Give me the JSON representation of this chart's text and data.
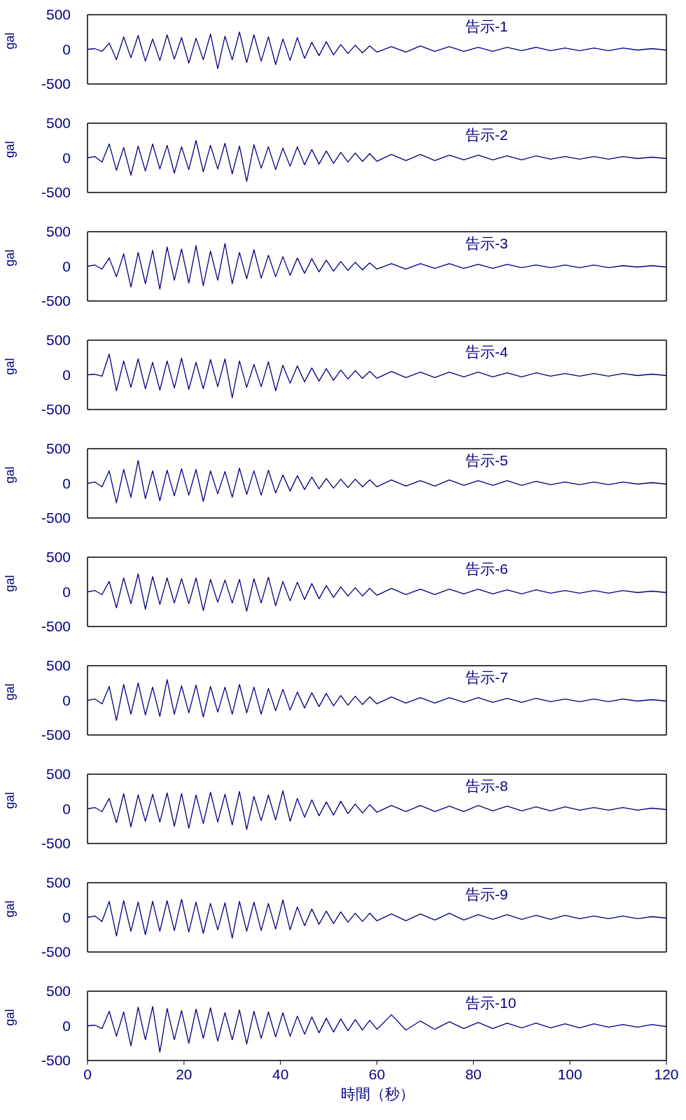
{
  "chart_data": [
    {
      "type": "line",
      "ylabel": "gal",
      "annotations": [
        "告示-1"
      ],
      "xlim": [
        0,
        120
      ],
      "xticks": [
        0,
        20,
        40,
        60,
        80,
        100,
        120
      ],
      "ylim": [
        -500,
        500
      ],
      "yticks": [
        -500,
        0,
        500
      ],
      "tick_labels": "y",
      "marker": "none",
      "x": [
        0,
        1.5,
        3,
        4.5,
        6,
        7.5,
        9,
        10.5,
        12,
        13.5,
        15,
        16.5,
        18,
        19.5,
        21,
        22.5,
        24,
        25.5,
        27,
        28.5,
        30,
        31.5,
        33,
        34.5,
        36,
        37.5,
        39,
        40.5,
        42,
        43.5,
        45,
        46.5,
        48,
        49.5,
        51,
        52.5,
        54,
        55.5,
        57,
        58.5,
        60,
        63,
        66,
        69,
        72,
        75,
        78,
        81,
        84,
        87,
        90,
        93,
        96,
        99,
        102,
        105,
        108,
        111,
        114,
        117,
        120
      ],
      "series": [
        {
          "color": "#000080",
          "values": [
            0,
            10,
            -30,
            90,
            -150,
            180,
            -120,
            200,
            -170,
            150,
            -160,
            210,
            -140,
            170,
            -200,
            160,
            -150,
            220,
            -280,
            190,
            -150,
            250,
            -190,
            210,
            -170,
            180,
            -220,
            150,
            -160,
            170,
            -130,
            100,
            -90,
            110,
            -80,
            70,
            -60,
            60,
            -50,
            50,
            -40,
            40,
            -40,
            50,
            -30,
            40,
            -30,
            30,
            -30,
            30,
            -20,
            30,
            -20,
            20,
            -20,
            20,
            -20,
            20,
            -10,
            10,
            -10
          ]
        }
      ]
    },
    {
      "type": "line",
      "ylabel": "gal",
      "annotations": [
        "告示-2"
      ],
      "xlim": [
        0,
        120
      ],
      "xticks": [
        0,
        20,
        40,
        60,
        80,
        100,
        120
      ],
      "ylim": [
        -500,
        500
      ],
      "yticks": [
        -500,
        0,
        500
      ],
      "tick_labels": "y",
      "marker": "none",
      "x": [
        0,
        1.5,
        3,
        4.5,
        6,
        7.5,
        9,
        10.5,
        12,
        13.5,
        15,
        16.5,
        18,
        19.5,
        21,
        22.5,
        24,
        25.5,
        27,
        28.5,
        30,
        31.5,
        33,
        34.5,
        36,
        37.5,
        39,
        40.5,
        42,
        43.5,
        45,
        46.5,
        48,
        49.5,
        51,
        52.5,
        54,
        55.5,
        57,
        58.5,
        60,
        63,
        66,
        69,
        72,
        75,
        78,
        81,
        84,
        87,
        90,
        93,
        96,
        99,
        102,
        105,
        108,
        111,
        114,
        117,
        120
      ],
      "series": [
        {
          "color": "#000080",
          "values": [
            0,
            20,
            -60,
            200,
            -180,
            150,
            -250,
            170,
            -190,
            200,
            -160,
            180,
            -220,
            160,
            -170,
            250,
            -200,
            180,
            -160,
            210,
            -230,
            170,
            -340,
            190,
            -150,
            160,
            -170,
            140,
            -120,
            160,
            -100,
            120,
            -90,
            100,
            -80,
            80,
            -60,
            70,
            -50,
            60,
            -50,
            50,
            -40,
            50,
            -40,
            40,
            -30,
            40,
            -30,
            30,
            -30,
            30,
            -20,
            20,
            -20,
            20,
            -20,
            20,
            -10,
            10,
            -10
          ]
        }
      ]
    },
    {
      "type": "line",
      "ylabel": "gal",
      "annotations": [
        "告示-3"
      ],
      "xlim": [
        0,
        120
      ],
      "xticks": [
        0,
        20,
        40,
        60,
        80,
        100,
        120
      ],
      "ylim": [
        -500,
        500
      ],
      "yticks": [
        -500,
        0,
        500
      ],
      "tick_labels": "y",
      "marker": "none",
      "x": [
        0,
        1.5,
        3,
        4.5,
        6,
        7.5,
        9,
        10.5,
        12,
        13.5,
        15,
        16.5,
        18,
        19.5,
        21,
        22.5,
        24,
        25.5,
        27,
        28.5,
        30,
        31.5,
        33,
        34.5,
        36,
        37.5,
        39,
        40.5,
        42,
        43.5,
        45,
        46.5,
        48,
        49.5,
        51,
        52.5,
        54,
        55.5,
        57,
        58.5,
        60,
        63,
        66,
        69,
        72,
        75,
        78,
        81,
        84,
        87,
        90,
        93,
        96,
        99,
        102,
        105,
        108,
        111,
        114,
        117,
        120
      ],
      "series": [
        {
          "color": "#000080",
          "values": [
            0,
            20,
            -40,
            120,
            -150,
            180,
            -300,
            200,
            -250,
            230,
            -330,
            280,
            -200,
            250,
            -240,
            300,
            -280,
            220,
            -200,
            330,
            -250,
            200,
            -180,
            240,
            -170,
            160,
            -150,
            140,
            -130,
            120,
            -100,
            110,
            -80,
            90,
            -70,
            70,
            -60,
            60,
            -50,
            50,
            -40,
            40,
            -40,
            40,
            -30,
            40,
            -30,
            30,
            -30,
            30,
            -20,
            20,
            -20,
            20,
            -20,
            20,
            -20,
            10,
            -10,
            10,
            -10
          ]
        }
      ]
    },
    {
      "type": "line",
      "ylabel": "gal",
      "annotations": [
        "告示-4"
      ],
      "xlim": [
        0,
        120
      ],
      "xticks": [
        0,
        20,
        40,
        60,
        80,
        100,
        120
      ],
      "ylim": [
        -500,
        500
      ],
      "yticks": [
        -500,
        0,
        500
      ],
      "tick_labels": "y",
      "marker": "none",
      "x": [
        0,
        1.5,
        3,
        4.5,
        6,
        7.5,
        9,
        10.5,
        12,
        13.5,
        15,
        16.5,
        18,
        19.5,
        21,
        22.5,
        24,
        25.5,
        27,
        28.5,
        30,
        31.5,
        33,
        34.5,
        36,
        37.5,
        39,
        40.5,
        42,
        43.5,
        45,
        46.5,
        48,
        49.5,
        51,
        52.5,
        54,
        55.5,
        57,
        58.5,
        60,
        63,
        66,
        69,
        72,
        75,
        78,
        81,
        84,
        87,
        90,
        93,
        96,
        99,
        102,
        105,
        108,
        111,
        114,
        117,
        120
      ],
      "series": [
        {
          "color": "#000080",
          "values": [
            0,
            10,
            -20,
            300,
            -230,
            200,
            -180,
            230,
            -200,
            180,
            -220,
            200,
            -190,
            240,
            -210,
            180,
            -200,
            220,
            -170,
            230,
            -330,
            200,
            -180,
            150,
            -170,
            190,
            -230,
            140,
            -120,
            130,
            -100,
            100,
            -90,
            90,
            -80,
            70,
            -60,
            60,
            -50,
            50,
            -50,
            50,
            -40,
            40,
            -40,
            40,
            -30,
            40,
            -30,
            30,
            -30,
            30,
            -20,
            20,
            -20,
            20,
            -20,
            20,
            -10,
            10,
            -10
          ]
        }
      ]
    },
    {
      "type": "line",
      "ylabel": "gal",
      "annotations": [
        "告示-5"
      ],
      "xlim": [
        0,
        120
      ],
      "xticks": [
        0,
        20,
        40,
        60,
        80,
        100,
        120
      ],
      "ylim": [
        -500,
        500
      ],
      "yticks": [
        -500,
        0,
        500
      ],
      "tick_labels": "y",
      "marker": "none",
      "x": [
        0,
        1.5,
        3,
        4.5,
        6,
        7.5,
        9,
        10.5,
        12,
        13.5,
        15,
        16.5,
        18,
        19.5,
        21,
        22.5,
        24,
        25.5,
        27,
        28.5,
        30,
        31.5,
        33,
        34.5,
        36,
        37.5,
        39,
        40.5,
        42,
        43.5,
        45,
        46.5,
        48,
        49.5,
        51,
        52.5,
        54,
        55.5,
        57,
        58.5,
        60,
        63,
        66,
        69,
        72,
        75,
        78,
        81,
        84,
        87,
        90,
        93,
        96,
        99,
        102,
        105,
        108,
        111,
        114,
        117,
        120
      ],
      "series": [
        {
          "color": "#000080",
          "values": [
            0,
            20,
            -50,
            180,
            -280,
            200,
            -200,
            330,
            -220,
            180,
            -250,
            190,
            -180,
            210,
            -170,
            200,
            -260,
            180,
            -150,
            170,
            -200,
            220,
            -160,
            180,
            -170,
            190,
            -140,
            120,
            -110,
            110,
            -90,
            90,
            -80,
            70,
            -70,
            60,
            -60,
            60,
            -50,
            50,
            -50,
            50,
            -40,
            40,
            -40,
            50,
            -30,
            40,
            -30,
            40,
            -30,
            30,
            -20,
            20,
            -20,
            20,
            -20,
            20,
            -10,
            10,
            -10
          ]
        }
      ]
    },
    {
      "type": "line",
      "ylabel": "gal",
      "annotations": [
        "告示-6"
      ],
      "xlim": [
        0,
        120
      ],
      "xticks": [
        0,
        20,
        40,
        60,
        80,
        100,
        120
      ],
      "ylim": [
        -500,
        500
      ],
      "yticks": [
        -500,
        0,
        500
      ],
      "tick_labels": "y",
      "marker": "none",
      "x": [
        0,
        1.5,
        3,
        4.5,
        6,
        7.5,
        9,
        10.5,
        12,
        13.5,
        15,
        16.5,
        18,
        19.5,
        21,
        22.5,
        24,
        25.5,
        27,
        28.5,
        30,
        31.5,
        33,
        34.5,
        36,
        37.5,
        39,
        40.5,
        42,
        43.5,
        45,
        46.5,
        48,
        49.5,
        51,
        52.5,
        54,
        55.5,
        57,
        58.5,
        60,
        63,
        66,
        69,
        72,
        75,
        78,
        81,
        84,
        87,
        90,
        93,
        96,
        99,
        102,
        105,
        108,
        111,
        114,
        117,
        120
      ],
      "series": [
        {
          "color": "#000080",
          "values": [
            0,
            20,
            -40,
            150,
            -230,
            200,
            -170,
            260,
            -250,
            220,
            -180,
            200,
            -160,
            190,
            -170,
            200,
            -270,
            180,
            -150,
            170,
            -160,
            180,
            -280,
            190,
            -160,
            210,
            -200,
            150,
            -130,
            140,
            -110,
            120,
            -100,
            90,
            -80,
            70,
            -60,
            60,
            -60,
            50,
            -50,
            50,
            -40,
            40,
            -40,
            40,
            -30,
            40,
            -30,
            30,
            -30,
            30,
            -20,
            20,
            -20,
            20,
            -20,
            20,
            -10,
            10,
            -10
          ]
        }
      ]
    },
    {
      "type": "line",
      "ylabel": "gal",
      "annotations": [
        "告示-7"
      ],
      "xlim": [
        0,
        120
      ],
      "xticks": [
        0,
        20,
        40,
        60,
        80,
        100,
        120
      ],
      "ylim": [
        -500,
        500
      ],
      "yticks": [
        -500,
        0,
        500
      ],
      "tick_labels": "y",
      "marker": "none",
      "x": [
        0,
        1.5,
        3,
        4.5,
        6,
        7.5,
        9,
        10.5,
        12,
        13.5,
        15,
        16.5,
        18,
        19.5,
        21,
        22.5,
        24,
        25.5,
        27,
        28.5,
        30,
        31.5,
        33,
        34.5,
        36,
        37.5,
        39,
        40.5,
        42,
        43.5,
        45,
        46.5,
        48,
        49.5,
        51,
        52.5,
        54,
        55.5,
        57,
        58.5,
        60,
        63,
        66,
        69,
        72,
        75,
        78,
        81,
        84,
        87,
        90,
        93,
        96,
        99,
        102,
        105,
        108,
        111,
        114,
        117,
        120
      ],
      "series": [
        {
          "color": "#000080",
          "values": [
            0,
            20,
            -50,
            200,
            -290,
            230,
            -200,
            250,
            -210,
            190,
            -230,
            300,
            -200,
            210,
            -180,
            220,
            -240,
            200,
            -170,
            190,
            -200,
            230,
            -180,
            190,
            -200,
            170,
            -150,
            160,
            -140,
            120,
            -110,
            110,
            -90,
            100,
            -80,
            70,
            -70,
            60,
            -60,
            50,
            -50,
            50,
            -40,
            40,
            -40,
            40,
            -30,
            40,
            -30,
            30,
            -30,
            30,
            -20,
            20,
            -20,
            20,
            -20,
            20,
            -10,
            10,
            -10
          ]
        }
      ]
    },
    {
      "type": "line",
      "ylabel": "gal",
      "annotations": [
        "告示-8"
      ],
      "xlim": [
        0,
        120
      ],
      "xticks": [
        0,
        20,
        40,
        60,
        80,
        100,
        120
      ],
      "ylim": [
        -500,
        500
      ],
      "yticks": [
        -500,
        0,
        500
      ],
      "tick_labels": "y",
      "marker": "none",
      "x": [
        0,
        1.5,
        3,
        4.5,
        6,
        7.5,
        9,
        10.5,
        12,
        13.5,
        15,
        16.5,
        18,
        19.5,
        21,
        22.5,
        24,
        25.5,
        27,
        28.5,
        30,
        31.5,
        33,
        34.5,
        36,
        37.5,
        39,
        40.5,
        42,
        43.5,
        45,
        46.5,
        48,
        49.5,
        51,
        52.5,
        54,
        55.5,
        57,
        58.5,
        60,
        63,
        66,
        69,
        72,
        75,
        78,
        81,
        84,
        87,
        90,
        93,
        96,
        99,
        102,
        105,
        108,
        111,
        114,
        117,
        120
      ],
      "series": [
        {
          "color": "#000080",
          "values": [
            0,
            20,
            -40,
            150,
            -200,
            220,
            -260,
            200,
            -180,
            210,
            -190,
            230,
            -250,
            220,
            -280,
            200,
            -210,
            240,
            -190,
            210,
            -230,
            250,
            -300,
            180,
            -170,
            200,
            -160,
            260,
            -180,
            150,
            -120,
            130,
            -100,
            100,
            -90,
            110,
            -70,
            70,
            -60,
            60,
            -50,
            50,
            -40,
            50,
            -40,
            40,
            -40,
            50,
            -30,
            40,
            -30,
            30,
            -30,
            30,
            -20,
            20,
            -20,
            20,
            -20,
            10,
            -10
          ]
        }
      ]
    },
    {
      "type": "line",
      "ylabel": "gal",
      "annotations": [
        "告示-9"
      ],
      "xlim": [
        0,
        120
      ],
      "xticks": [
        0,
        20,
        40,
        60,
        80,
        100,
        120
      ],
      "ylim": [
        -500,
        500
      ],
      "yticks": [
        -500,
        0,
        500
      ],
      "tick_labels": "y",
      "marker": "none",
      "x": [
        0,
        1.5,
        3,
        4.5,
        6,
        7.5,
        9,
        10.5,
        12,
        13.5,
        15,
        16.5,
        18,
        19.5,
        21,
        22.5,
        24,
        25.5,
        27,
        28.5,
        30,
        31.5,
        33,
        34.5,
        36,
        37.5,
        39,
        40.5,
        42,
        43.5,
        45,
        46.5,
        48,
        49.5,
        51,
        52.5,
        54,
        55.5,
        57,
        58.5,
        60,
        63,
        66,
        69,
        72,
        75,
        78,
        81,
        84,
        87,
        90,
        93,
        96,
        99,
        102,
        105,
        108,
        111,
        114,
        117,
        120
      ],
      "series": [
        {
          "color": "#000080",
          "values": [
            0,
            20,
            -60,
            230,
            -270,
            240,
            -200,
            220,
            -250,
            230,
            -200,
            240,
            -190,
            260,
            -210,
            220,
            -230,
            200,
            -180,
            210,
            -300,
            230,
            -200,
            220,
            -190,
            200,
            -170,
            250,
            -180,
            150,
            -120,
            120,
            -100,
            90,
            -90,
            80,
            -70,
            60,
            -60,
            60,
            -50,
            50,
            -50,
            50,
            -40,
            60,
            -40,
            40,
            -30,
            40,
            -30,
            30,
            -30,
            30,
            -20,
            20,
            -20,
            20,
            -20,
            10,
            -10
          ]
        }
      ]
    },
    {
      "type": "line",
      "ylabel": "gal",
      "xlabel": "時間（秒）",
      "annotations": [
        "告示-10"
      ],
      "xlim": [
        0,
        120
      ],
      "xticks": [
        0,
        20,
        40,
        60,
        80,
        100,
        120
      ],
      "ylim": [
        -500,
        500
      ],
      "yticks": [
        -500,
        0,
        500
      ],
      "marker": "none",
      "x": [
        0,
        1.5,
        3,
        4.5,
        6,
        7.5,
        9,
        10.5,
        12,
        13.5,
        15,
        16.5,
        18,
        19.5,
        21,
        22.5,
        24,
        25.5,
        27,
        28.5,
        30,
        31.5,
        33,
        34.5,
        36,
        37.5,
        39,
        40.5,
        42,
        43.5,
        45,
        46.5,
        48,
        49.5,
        51,
        52.5,
        54,
        55.5,
        57,
        58.5,
        60,
        63,
        66,
        69,
        72,
        75,
        78,
        81,
        84,
        87,
        90,
        93,
        96,
        99,
        102,
        105,
        108,
        111,
        114,
        117,
        120
      ],
      "series": [
        {
          "color": "#000080",
          "values": [
            0,
            10,
            -40,
            210,
            -150,
            200,
            -290,
            270,
            -200,
            280,
            -380,
            250,
            -200,
            220,
            -250,
            240,
            -180,
            260,
            -220,
            190,
            -200,
            230,
            -260,
            210,
            -180,
            200,
            -160,
            190,
            -150,
            140,
            -120,
            130,
            -100,
            110,
            -90,
            100,
            -70,
            90,
            -60,
            80,
            -50,
            160,
            -60,
            70,
            -50,
            60,
            -40,
            50,
            -40,
            40,
            -30,
            40,
            -30,
            30,
            -30,
            30,
            -20,
            20,
            -20,
            20,
            -10
          ]
        }
      ]
    }
  ]
}
